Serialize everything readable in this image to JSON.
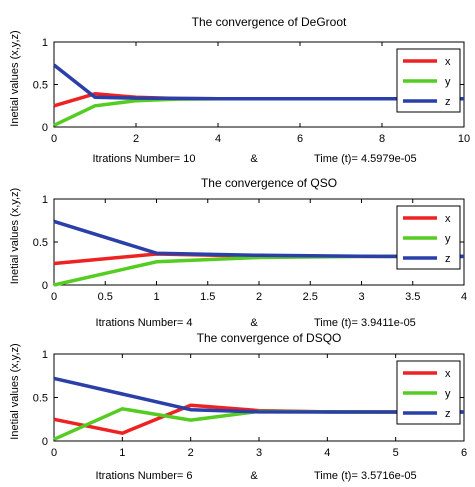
{
  "chart_data": [
    {
      "type": "line",
      "title": "The convergence of DeGroot",
      "xlabel_parts": [
        "Itrations Number= 10",
        "&",
        "Time (t)=  4.5979e-05"
      ],
      "ylabel": "Inetial values (x,y,z)",
      "xlim": [
        0,
        10
      ],
      "ylim": [
        0,
        1
      ],
      "xticks": [
        0,
        2,
        4,
        6,
        8,
        10
      ],
      "yticks": [
        0,
        0.5,
        1
      ],
      "xtick_labels": [
        "0",
        "2",
        "4",
        "6",
        "8",
        "10"
      ],
      "ytick_labels": [
        "0",
        "0.5",
        "1"
      ],
      "legend_position": "top-right",
      "series": [
        {
          "name": "x",
          "color": "#ee2222",
          "x": [
            0,
            1,
            2,
            3,
            4,
            5,
            6,
            7,
            8,
            9,
            10
          ],
          "y": [
            0.25,
            0.39,
            0.35,
            0.335,
            0.333,
            0.333,
            0.333,
            0.333,
            0.333,
            0.333,
            0.333
          ]
        },
        {
          "name": "y",
          "color": "#55cc22",
          "x": [
            0,
            1,
            2,
            3,
            4,
            5,
            6,
            7,
            8,
            9,
            10
          ],
          "y": [
            0.02,
            0.25,
            0.31,
            0.328,
            0.333,
            0.333,
            0.333,
            0.333,
            0.333,
            0.333,
            0.333
          ]
        },
        {
          "name": "z",
          "color": "#2a3fa8",
          "x": [
            0,
            1,
            2,
            3,
            4,
            5,
            6,
            7,
            8,
            9,
            10
          ],
          "y": [
            0.73,
            0.35,
            0.34,
            0.336,
            0.333,
            0.333,
            0.333,
            0.333,
            0.333,
            0.333,
            0.333
          ]
        }
      ]
    },
    {
      "type": "line",
      "title": "The convergence of QSO",
      "xlabel_parts": [
        "Itrations Number= 4",
        "&",
        "Time (t)=  3.9411e-05"
      ],
      "ylabel": "Inetial values (x,y,z)",
      "xlim": [
        0,
        4
      ],
      "ylim": [
        0,
        1
      ],
      "xticks": [
        0,
        0.5,
        1,
        1.5,
        2,
        2.5,
        3,
        3.5,
        4
      ],
      "yticks": [
        0,
        0.5,
        1
      ],
      "xtick_labels": [
        "0",
        "0.5",
        "1",
        "1.5",
        "2",
        "2.5",
        "3",
        "3.5",
        "4"
      ],
      "ytick_labels": [
        "0",
        "0.5",
        "1"
      ],
      "legend_position": "top-right",
      "series": [
        {
          "name": "x",
          "color": "#ee2222",
          "x": [
            0,
            1,
            2,
            3,
            4
          ],
          "y": [
            0.25,
            0.36,
            0.335,
            0.333,
            0.333
          ]
        },
        {
          "name": "y",
          "color": "#55cc22",
          "x": [
            0,
            1,
            2,
            3,
            4
          ],
          "y": [
            0.0,
            0.27,
            0.32,
            0.333,
            0.333
          ]
        },
        {
          "name": "z",
          "color": "#2a3fa8",
          "x": [
            0,
            1,
            2,
            3,
            4
          ],
          "y": [
            0.74,
            0.37,
            0.345,
            0.334,
            0.333
          ]
        }
      ]
    },
    {
      "type": "line",
      "title": "The convergence of DSQO",
      "xlabel_parts": [
        "Itrations Number= 6",
        "&",
        "Time (t)=  3.5716e-05"
      ],
      "ylabel": "Inetial values (x,y,z)",
      "xlim": [
        0,
        6
      ],
      "ylim": [
        0,
        1
      ],
      "xticks": [
        0,
        1,
        2,
        3,
        4,
        5,
        6
      ],
      "yticks": [
        0,
        0.5,
        1
      ],
      "xtick_labels": [
        "0",
        "1",
        "2",
        "3",
        "4",
        "5",
        "6"
      ],
      "ytick_labels": [
        "0",
        "0.5",
        "1"
      ],
      "legend_position": "top-right",
      "series": [
        {
          "name": "x",
          "color": "#ee2222",
          "x": [
            0,
            1,
            2,
            3,
            4,
            5,
            6
          ],
          "y": [
            0.25,
            0.09,
            0.41,
            0.35,
            0.335,
            0.333,
            0.333
          ]
        },
        {
          "name": "y",
          "color": "#55cc22",
          "x": [
            0,
            1,
            2,
            3,
            4,
            5,
            6
          ],
          "y": [
            0.02,
            0.37,
            0.24,
            0.34,
            0.335,
            0.333,
            0.333
          ]
        },
        {
          "name": "z",
          "color": "#2a3fa8",
          "x": [
            0,
            1,
            2,
            3,
            4,
            5,
            6
          ],
          "y": [
            0.72,
            0.54,
            0.36,
            0.335,
            0.333,
            0.333,
            0.333
          ]
        }
      ]
    }
  ]
}
